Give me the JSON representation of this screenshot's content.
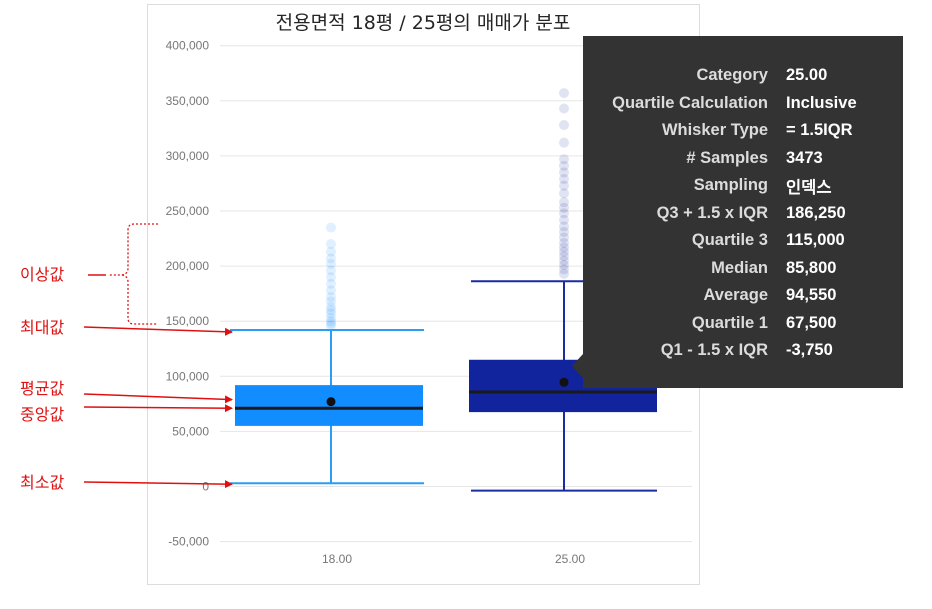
{
  "chart_data": {
    "type": "box",
    "title": "전용면적 18평 / 25평의 매매가 분포",
    "categories": [
      "18.00",
      "25.00"
    ],
    "ylim": [
      -50000,
      400000
    ],
    "yticks": [
      -50000,
      0,
      50000,
      100000,
      150000,
      200000,
      250000,
      300000,
      350000,
      400000
    ],
    "ytick_labels": [
      "-50,000",
      "0",
      "50,000",
      "100,000",
      "150,000",
      "200,000",
      "250,000",
      "300,000",
      "350,000",
      "400,000"
    ],
    "grid": true,
    "series": [
      {
        "category": "18.00",
        "color": "#118dff",
        "whisker_color": "#2a9df4",
        "min": 3000,
        "q1": 55000,
        "median": 71000,
        "mean": 77000,
        "q3": 92000,
        "max": 142000,
        "outliers": [
          146000,
          148000,
          150000,
          153000,
          157000,
          160000,
          163000,
          168000,
          172000,
          178000,
          184000,
          190000,
          196000,
          202000,
          207000,
          213000,
          220000,
          235000
        ]
      },
      {
        "category": "25.00",
        "color": "#12239e",
        "whisker_color": "#1a2ca0",
        "min": -3750,
        "q1": 67500,
        "median": 85800,
        "mean": 94550,
        "q3": 115000,
        "max": 186250,
        "outliers": [
          193000,
          197000,
          201000,
          205000,
          209000,
          213000,
          217000,
          221000,
          226000,
          231000,
          236000,
          242000,
          248000,
          253000,
          258000,
          266000,
          273000,
          279000,
          285000,
          291000,
          297000,
          312000,
          328000,
          343000,
          357000
        ]
      }
    ]
  },
  "annotations": [
    {
      "name": "outlier",
      "label": "이상값"
    },
    {
      "name": "max",
      "label": "최대값"
    },
    {
      "name": "mean",
      "label": "평균값"
    },
    {
      "name": "median",
      "label": "중앙값"
    },
    {
      "name": "min",
      "label": "최소값"
    }
  ],
  "tooltip": {
    "rows": [
      {
        "key": "Category",
        "value": "25.00"
      },
      {
        "key": "Quartile Calculation",
        "value": "Inclusive"
      },
      {
        "key": "Whisker Type",
        "value": "= 1.5IQR"
      },
      {
        "key": "# Samples",
        "value": "3473"
      },
      {
        "key": "Sampling",
        "value": "인덱스"
      },
      {
        "key": "Q3 + 1.5 x IQR",
        "value": "186,250"
      },
      {
        "key": "Quartile 3",
        "value": "115,000"
      },
      {
        "key": "Median",
        "value": "85,800"
      },
      {
        "key": "Average",
        "value": "94,550"
      },
      {
        "key": "Quartile 1",
        "value": "67,500"
      },
      {
        "key": "Q1 - 1.5 x IQR",
        "value": "-3,750"
      }
    ]
  },
  "colors": {
    "annotation": "#e01010",
    "tooltip_bg": "#333333",
    "gridline": "#e6e6e6",
    "mean_dot": "#111111"
  }
}
